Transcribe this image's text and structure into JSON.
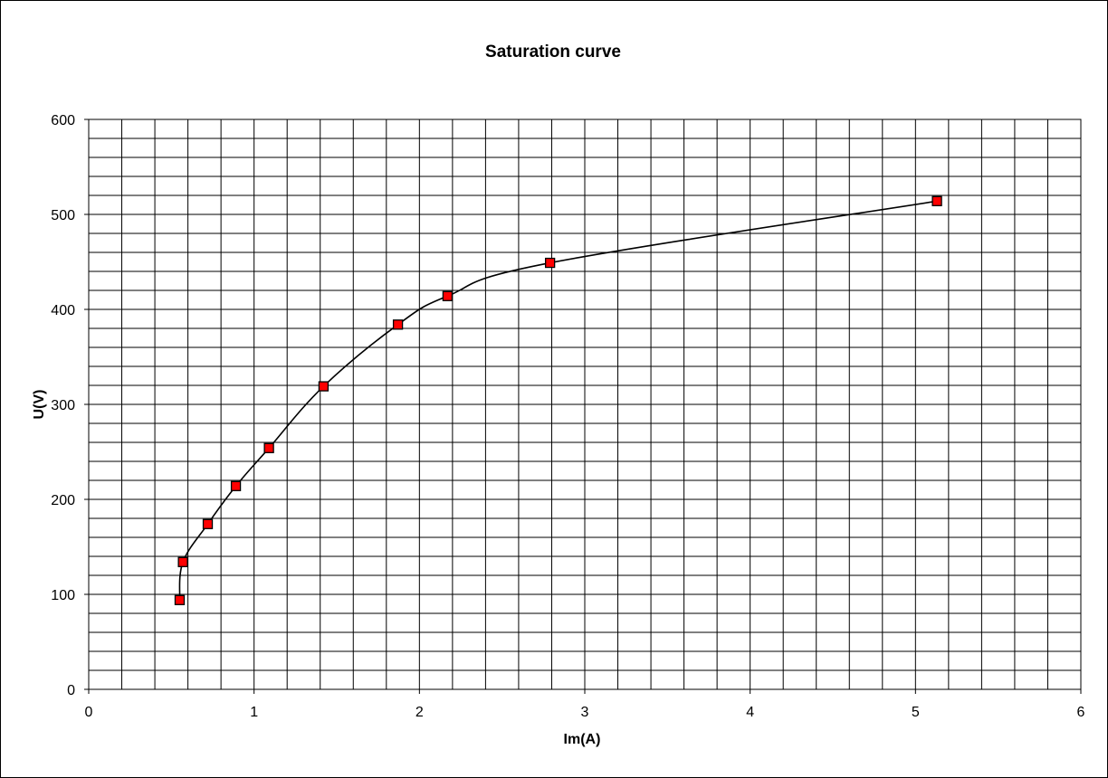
{
  "chart_data": {
    "type": "scatter",
    "title": "Saturation curve",
    "xlabel": "Im(A)",
    "ylabel": "U(V)",
    "xlim": [
      0,
      6
    ],
    "ylim": [
      0,
      600
    ],
    "x_ticks": [
      0,
      1,
      2,
      3,
      4,
      5,
      6
    ],
    "y_ticks": [
      0,
      100,
      200,
      300,
      400,
      500,
      600
    ],
    "grid": true,
    "legend": "none",
    "series": [
      {
        "marker": "square",
        "marker_color": "#ff0000",
        "line_color": "#000000",
        "smooth": true,
        "points": [
          {
            "x": 0.55,
            "y": 94
          },
          {
            "x": 0.57,
            "y": 134
          },
          {
            "x": 0.72,
            "y": 174
          },
          {
            "x": 0.89,
            "y": 214
          },
          {
            "x": 1.09,
            "y": 254
          },
          {
            "x": 1.42,
            "y": 319
          },
          {
            "x": 1.87,
            "y": 384
          },
          {
            "x": 2.17,
            "y": 414
          },
          {
            "x": 2.79,
            "y": 449
          },
          {
            "x": 5.13,
            "y": 514
          }
        ]
      }
    ]
  }
}
